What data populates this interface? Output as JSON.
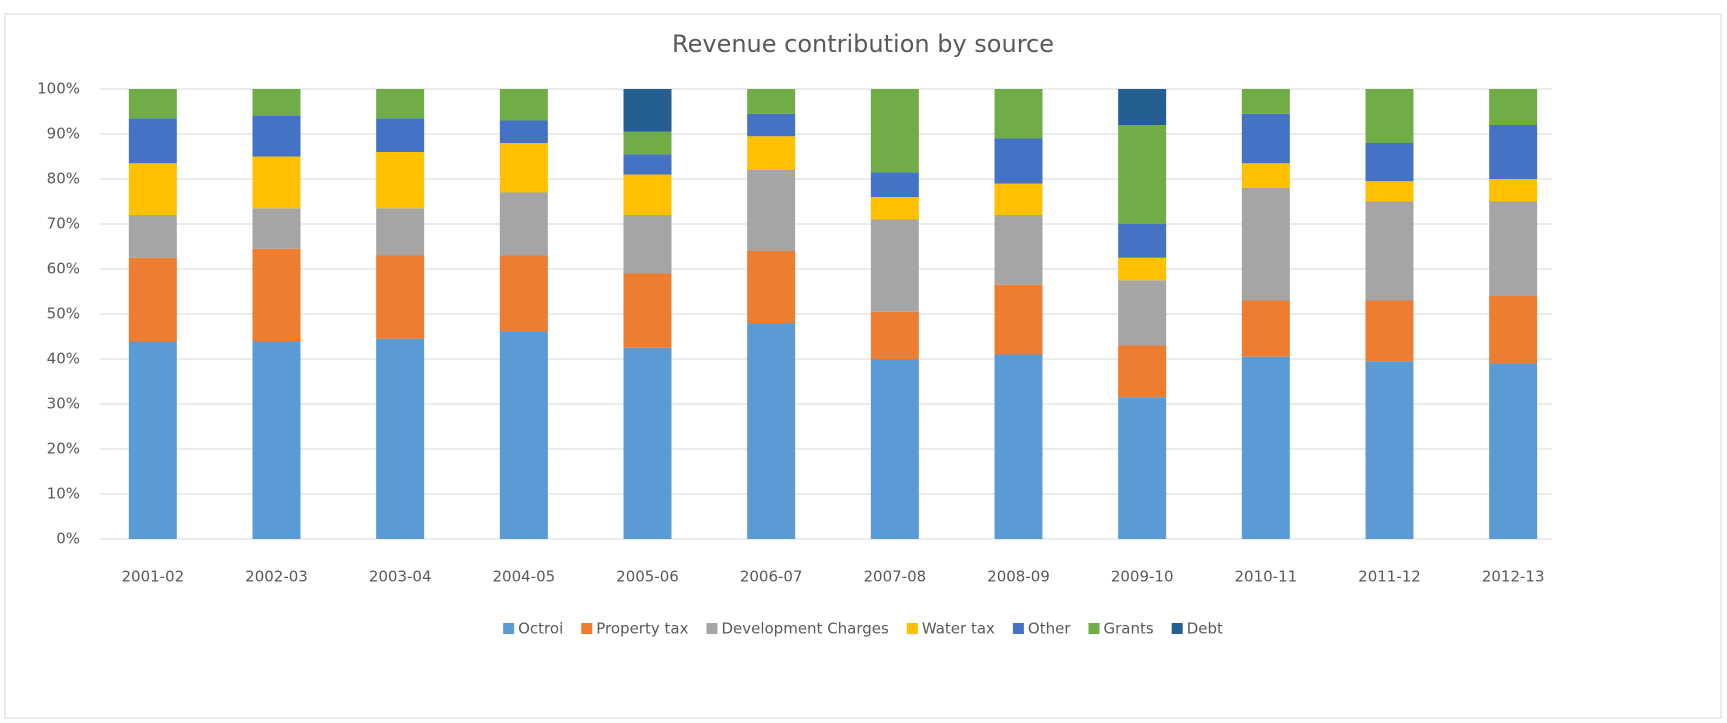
{
  "chart_data": {
    "type": "stacked_bar",
    "title": "Revenue contribution by source",
    "categories": [
      "2001-02",
      "2002-03",
      "2003-04",
      "2004-05",
      "2005-06",
      "2006-07",
      "2007-08",
      "2008-09",
      "2009-10",
      "2010-11",
      "2011-12",
      "2012-13"
    ],
    "series": [
      {
        "name": "Octroi",
        "color": "#5b9bd5",
        "values": [
          44,
          44,
          44.5,
          46,
          42.5,
          48,
          40,
          41,
          31.5,
          40.5,
          39.5,
          39
        ]
      },
      {
        "name": "Property tax",
        "color": "#ed7d31",
        "values": [
          18.5,
          20.5,
          18.5,
          17,
          16.5,
          16,
          10.5,
          15.5,
          11.5,
          12.5,
          13.5,
          15
        ]
      },
      {
        "name": "Development Charges",
        "color": "#a5a5a5",
        "values": [
          9.5,
          9,
          10.5,
          14,
          13,
          18,
          20.5,
          15.5,
          14.5,
          25,
          22,
          21
        ]
      },
      {
        "name": "Water tax",
        "color": "#ffc000",
        "values": [
          11.5,
          11.5,
          12.5,
          11,
          9,
          7.5,
          5,
          7,
          5,
          5.5,
          4.5,
          5
        ]
      },
      {
        "name": "Other",
        "color": "#4472c4",
        "values": [
          10,
          9,
          7.5,
          5,
          4.5,
          5,
          5.5,
          10,
          7.5,
          11,
          8.5,
          12
        ]
      },
      {
        "name": "Grants",
        "color": "#70ad47",
        "values": [
          6.5,
          6,
          6.5,
          7,
          5,
          5.5,
          18.5,
          11,
          22,
          5.5,
          12,
          8
        ]
      },
      {
        "name": "Debt",
        "color": "#255e91",
        "values": [
          0,
          0,
          0,
          0,
          9.5,
          0,
          0,
          0,
          8,
          0,
          0,
          0
        ]
      }
    ],
    "ylim": [
      0,
      100
    ],
    "yticks": [
      {
        "value": 0,
        "label": "0%"
      },
      {
        "value": 10,
        "label": "10%"
      },
      {
        "value": 20,
        "label": "20%"
      },
      {
        "value": 30,
        "label": "30%"
      },
      {
        "value": 40,
        "label": "40%"
      },
      {
        "value": 50,
        "label": "50%"
      },
      {
        "value": 60,
        "label": "60%"
      },
      {
        "value": 70,
        "label": "70%"
      },
      {
        "value": 80,
        "label": "80%"
      },
      {
        "value": 90,
        "label": "90%"
      },
      {
        "value": 100,
        "label": "100%"
      }
    ],
    "grid": true,
    "legend": "bottom"
  }
}
